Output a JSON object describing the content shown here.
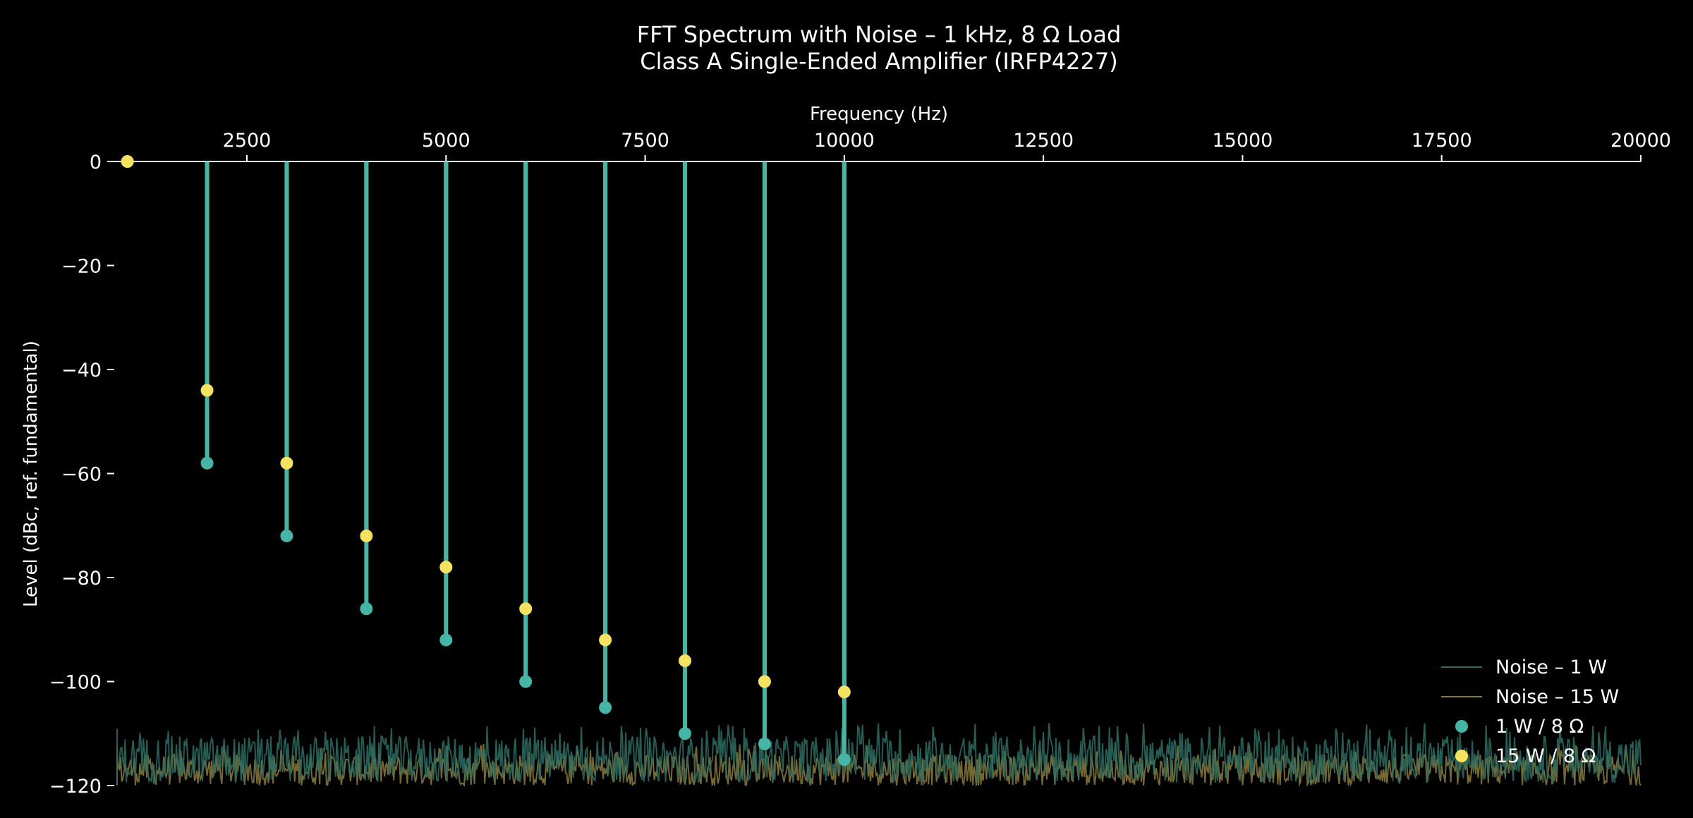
{
  "chart_data": {
    "type": "stem",
    "title": "FFT Spectrum with Noise – 1 kHz, 8 Ω Load",
    "subtitle": "Class A Single-Ended Amplifier (IRFP4227)",
    "xlabel": "Frequency (Hz)",
    "ylabel": "Level (dBc, ref. fundamental)",
    "xlim": [
      0,
      20000
    ],
    "ylim": [
      -120,
      0
    ],
    "x_axis_position": "top",
    "x_ticks": [
      2500,
      5000,
      7500,
      10000,
      12500,
      15000,
      17500,
      20000
    ],
    "y_ticks": [
      0,
      -20,
      -40,
      -60,
      -80,
      -100,
      -120
    ],
    "x_tick_labels": [
      "2500",
      "5000",
      "7500",
      "10000",
      "12500",
      "15000",
      "17500",
      "20000"
    ],
    "y_tick_labels": [
      "0",
      "−20",
      "−40",
      "−60",
      "−80",
      "−100",
      "−120"
    ],
    "grid": false,
    "legend_position": "bottom-right",
    "background": "#000000",
    "x": [
      1000,
      2000,
      3000,
      4000,
      5000,
      6000,
      7000,
      8000,
      9000,
      10000
    ],
    "series": [
      {
        "name": "15 W / 8 Ω",
        "kind": "stem",
        "color": "#f5e35f",
        "values": [
          0,
          -44,
          -58,
          -72,
          -78,
          -86,
          -92,
          -96,
          -100,
          -102
        ]
      },
      {
        "name": "1 W / 8 Ω",
        "kind": "stem",
        "color": "#45b5a6",
        "values": [
          0,
          -58,
          -72,
          -86,
          -92,
          -100,
          -105,
          -110,
          -112,
          -115
        ]
      },
      {
        "name": "Noise – 1 W",
        "kind": "noise",
        "color": "#2a6d62",
        "mean": -115,
        "range": [
          -120,
          -108
        ],
        "x_range": [
          0,
          20000
        ]
      },
      {
        "name": "Noise – 15 W",
        "kind": "noise",
        "color": "#8a7a3a",
        "mean": -117,
        "range": [
          -120,
          -112
        ],
        "x_range": [
          0,
          20000
        ]
      }
    ]
  }
}
